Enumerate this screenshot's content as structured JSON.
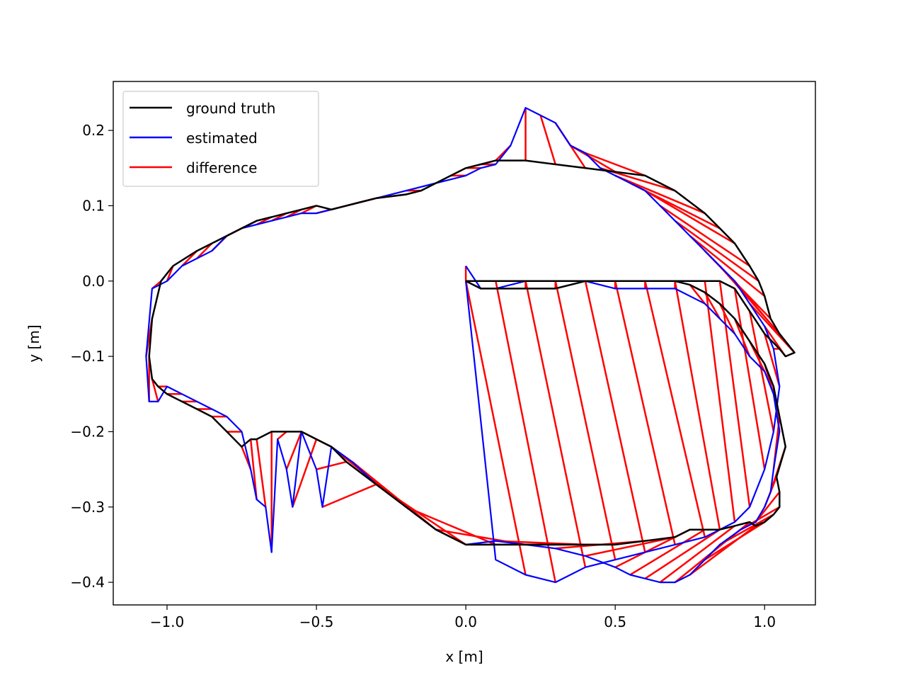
{
  "chart_data": {
    "type": "line",
    "title": "",
    "xlabel": "x [m]",
    "ylabel": "y [m]",
    "xlim": [
      -1.18,
      1.17
    ],
    "ylim": [
      -0.43,
      0.265
    ],
    "xticks": [
      -1.0,
      -0.5,
      0.0,
      0.5,
      1.0
    ],
    "yticks": [
      -0.4,
      -0.3,
      -0.2,
      -0.1,
      0.0,
      0.1,
      0.2
    ],
    "xtick_labels": [
      "−1.0",
      "−0.5",
      "0.0",
      "0.5",
      "1.0"
    ],
    "ytick_labels": [
      "−0.4",
      "−0.3",
      "−0.2",
      "−0.1",
      "0.0",
      "0.1",
      "0.2"
    ],
    "grid": false,
    "legend_position": "top-left",
    "legend": [
      {
        "label": "ground truth",
        "color": "#000000"
      },
      {
        "label": "estimated",
        "color": "#0000ff"
      },
      {
        "label": "difference",
        "color": "#ff0000"
      }
    ],
    "series": [
      {
        "name": "ground truth",
        "color": "#000000",
        "x": [
          0.0,
          0.05,
          0.1,
          0.2,
          0.3,
          0.4,
          0.5,
          0.6,
          0.7,
          0.75,
          0.8,
          0.85,
          0.9,
          0.95,
          1.0,
          1.03,
          1.05,
          1.07,
          1.04,
          1.05,
          1.05,
          1.03,
          1.0,
          0.97,
          0.95,
          0.9,
          0.85,
          0.8,
          0.75,
          0.7,
          0.6,
          0.5,
          0.4,
          0.3,
          0.2,
          0.1,
          0.0,
          -0.1,
          -0.2,
          -0.3,
          -0.4,
          -0.45,
          -0.5,
          -0.55,
          -0.6,
          -0.65,
          -0.7,
          -0.72,
          -0.75,
          -0.8,
          -0.85,
          -0.9,
          -0.95,
          -1.0,
          -1.03,
          -1.05,
          -1.06,
          -1.05,
          -1.02,
          -0.98,
          -0.9,
          -0.85,
          -0.8,
          -0.75,
          -0.7,
          -0.65,
          -0.6,
          -0.55,
          -0.5,
          -0.45,
          -0.4,
          -0.3,
          -0.2,
          -0.15,
          -0.1,
          -0.05,
          0.0,
          0.05,
          0.1,
          0.2,
          0.3,
          0.4,
          0.5,
          0.6,
          0.7,
          0.8,
          0.85,
          0.9,
          0.95,
          0.98,
          1.0,
          1.02,
          1.05,
          1.08,
          1.1,
          1.07,
          1.05,
          1.0,
          0.95,
          0.9,
          0.85,
          0.8,
          0.7,
          0.6,
          0.5,
          0.4,
          0.3,
          0.2,
          0.1,
          0.0
        ],
        "y": [
          0.0,
          -0.01,
          -0.01,
          -0.01,
          -0.01,
          0.0,
          0.0,
          0.0,
          0.0,
          -0.005,
          -0.015,
          -0.03,
          -0.05,
          -0.08,
          -0.11,
          -0.14,
          -0.18,
          -0.22,
          -0.26,
          -0.28,
          -0.3,
          -0.31,
          -0.32,
          -0.325,
          -0.32,
          -0.325,
          -0.33,
          -0.33,
          -0.33,
          -0.34,
          -0.345,
          -0.35,
          -0.35,
          -0.35,
          -0.35,
          -0.35,
          -0.35,
          -0.33,
          -0.3,
          -0.27,
          -0.24,
          -0.22,
          -0.21,
          -0.2,
          -0.2,
          -0.2,
          -0.21,
          -0.21,
          -0.22,
          -0.2,
          -0.18,
          -0.17,
          -0.16,
          -0.15,
          -0.14,
          -0.13,
          -0.1,
          -0.05,
          0.0,
          0.02,
          0.04,
          0.05,
          0.06,
          0.07,
          0.08,
          0.085,
          0.09,
          0.095,
          0.1,
          0.095,
          0.1,
          0.11,
          0.115,
          0.12,
          0.13,
          0.14,
          0.15,
          0.155,
          0.16,
          0.16,
          0.155,
          0.15,
          0.145,
          0.14,
          0.12,
          0.09,
          0.07,
          0.05,
          0.02,
          0.0,
          -0.02,
          -0.05,
          -0.07,
          -0.085,
          -0.095,
          -0.1,
          -0.09,
          -0.07,
          -0.04,
          -0.01,
          0.0,
          0.0,
          0.0,
          0.0,
          0.0,
          0.0,
          0.0,
          0.0,
          0.0,
          0.0
        ],
        "note_closed_loop": true
      },
      {
        "name": "estimated",
        "color": "#0000ff",
        "x": [
          0.0,
          0.05,
          0.1,
          0.2,
          0.3,
          0.4,
          0.5,
          0.6,
          0.7,
          0.8,
          0.85,
          0.9,
          0.95,
          1.0,
          1.03,
          1.05,
          1.03,
          1.02,
          1.0,
          0.97,
          0.92,
          0.85,
          0.8,
          0.75,
          0.7,
          0.65,
          0.6,
          0.55,
          0.5,
          0.4,
          0.3,
          0.2,
          0.1,
          0.0,
          -0.1,
          -0.2,
          -0.3,
          -0.38,
          -0.45,
          -0.48,
          -0.5,
          -0.55,
          -0.58,
          -0.6,
          -0.63,
          -0.65,
          -0.67,
          -0.7,
          -0.72,
          -0.75,
          -0.8,
          -0.85,
          -0.9,
          -0.95,
          -1.0,
          -1.03,
          -1.06,
          -1.07,
          -1.05,
          -1.0,
          -0.95,
          -0.9,
          -0.85,
          -0.8,
          -0.75,
          -0.7,
          -0.65,
          -0.6,
          -0.55,
          -0.5,
          -0.45,
          -0.4,
          -0.3,
          -0.2,
          -0.1,
          0.0,
          0.05,
          0.1,
          0.15,
          0.2,
          0.25,
          0.3,
          0.35,
          0.4,
          0.45,
          0.5,
          0.55,
          0.6,
          0.65,
          0.7,
          0.75,
          0.8,
          0.85,
          0.9,
          0.95,
          1.0,
          1.03,
          1.05,
          1.03,
          1.0,
          0.95,
          0.9,
          0.85,
          0.8,
          0.7,
          0.6,
          0.5,
          0.4,
          0.3,
          0.2,
          0.1,
          0.0
        ],
        "y": [
          0.02,
          -0.01,
          -0.01,
          0.0,
          0.0,
          0.0,
          -0.01,
          -0.01,
          -0.01,
          -0.03,
          -0.05,
          -0.07,
          -0.1,
          -0.12,
          -0.15,
          -0.2,
          -0.25,
          -0.28,
          -0.3,
          -0.32,
          -0.33,
          -0.35,
          -0.37,
          -0.39,
          -0.4,
          -0.4,
          -0.395,
          -0.39,
          -0.38,
          -0.365,
          -0.355,
          -0.35,
          -0.345,
          -0.35,
          -0.33,
          -0.3,
          -0.27,
          -0.24,
          -0.22,
          -0.3,
          -0.25,
          -0.2,
          -0.3,
          -0.25,
          -0.21,
          -0.36,
          -0.3,
          -0.29,
          -0.25,
          -0.2,
          -0.18,
          -0.17,
          -0.16,
          -0.15,
          -0.14,
          -0.16,
          -0.16,
          -0.1,
          -0.01,
          0.0,
          0.02,
          0.03,
          0.04,
          0.06,
          0.07,
          0.075,
          0.08,
          0.085,
          0.09,
          0.09,
          0.095,
          0.1,
          0.11,
          0.12,
          0.13,
          0.14,
          0.15,
          0.155,
          0.18,
          0.23,
          0.22,
          0.21,
          0.18,
          0.17,
          0.15,
          0.14,
          0.13,
          0.12,
          0.1,
          0.08,
          0.06,
          0.04,
          0.02,
          0.0,
          -0.03,
          -0.06,
          -0.09,
          -0.14,
          -0.2,
          -0.25,
          -0.3,
          -0.32,
          -0.33,
          -0.34,
          -0.35,
          -0.36,
          -0.37,
          -0.38,
          -0.4,
          -0.39,
          -0.37,
          0.0
        ]
      }
    ]
  }
}
